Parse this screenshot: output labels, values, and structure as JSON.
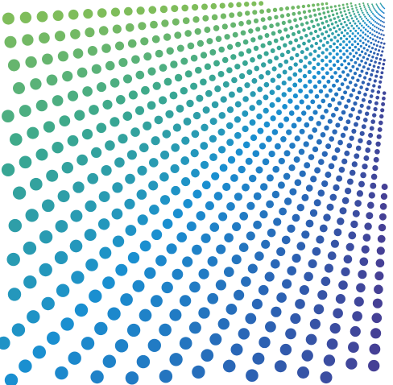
{
  "artwork": {
    "subject": "halftone-dot-burst",
    "palette": [
      "#8cc152",
      "#3aa88f",
      "#1a8fd0",
      "#2a64b5",
      "#4a3a8f"
    ],
    "background": "#ffffff"
  }
}
